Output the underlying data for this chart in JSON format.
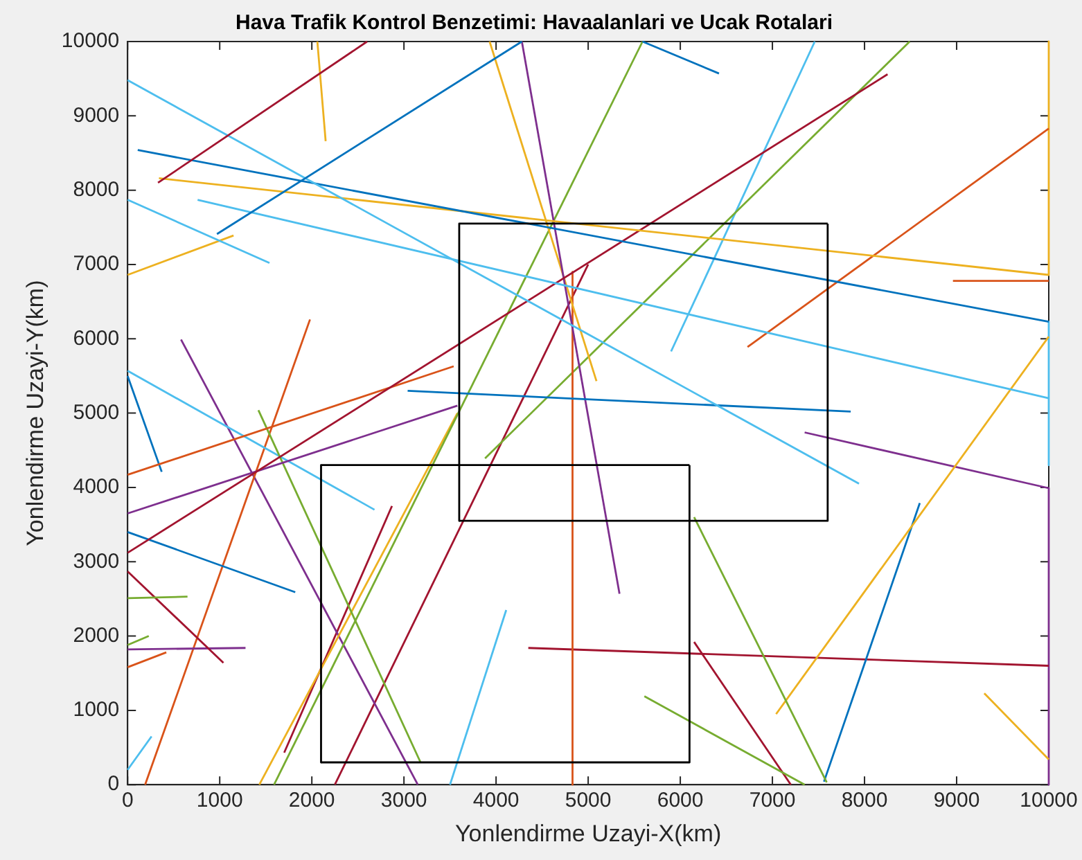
{
  "chart_data": {
    "type": "line",
    "title": "Hava Trafik Kontrol Benzetimi: Havaalanlari ve Ucak Rotalari",
    "xlabel": "Yonlendirme Uzayi-X(km)",
    "ylabel": "Yonlendirme Uzayi-Y(km)",
    "xlim": [
      0,
      10000
    ],
    "ylim": [
      0,
      10000
    ],
    "xticks": [
      0,
      1000,
      2000,
      3000,
      4000,
      5000,
      6000,
      7000,
      8000,
      9000,
      10000
    ],
    "yticks": [
      0,
      1000,
      2000,
      3000,
      4000,
      5000,
      6000,
      7000,
      8000,
      9000,
      10000
    ],
    "grid": false,
    "legend": false,
    "marker": "none",
    "line_style": "solid",
    "series": [
      {
        "color": "#000000",
        "x": [
          3600,
          7600,
          7600
        ],
        "values": [
          3550,
          3550,
          7550
        ]
      },
      {
        "color": "#000000",
        "x": [
          7600,
          3600,
          3600
        ],
        "values": [
          7550,
          7550,
          3550
        ]
      },
      {
        "color": "#000000",
        "x": [
          2100,
          6100,
          6100
        ],
        "values": [
          300,
          300,
          4300
        ]
      },
      {
        "color": "#000000",
        "x": [
          6100,
          2100,
          2100
        ],
        "values": [
          4300,
          4300,
          300
        ]
      },
      {
        "color": "#0072bd",
        "x": [
          970,
          4280
        ],
        "values": [
          7410,
          10000
        ]
      },
      {
        "color": "#a2142f",
        "x": [
          330,
          2600
        ],
        "values": [
          8100,
          10000
        ]
      },
      {
        "color": "#edb120",
        "x": [
          2060,
          2150
        ],
        "values": [
          10000,
          8660
        ]
      },
      {
        "color": "#4dbeee",
        "x": [
          0,
          7940
        ],
        "values": [
          9480,
          4050
        ]
      },
      {
        "color": "#0072bd",
        "x": [
          110,
          10000
        ],
        "values": [
          8540,
          6230
        ]
      },
      {
        "color": "#edb120",
        "x": [
          340,
          10000
        ],
        "values": [
          8160,
          6860
        ]
      },
      {
        "color": "#4dbeee",
        "x": [
          760,
          10000
        ],
        "values": [
          7870,
          5200
        ]
      },
      {
        "color": "#4dbeee",
        "x": [
          0,
          1540
        ],
        "values": [
          7870,
          7020
        ]
      },
      {
        "color": "#edb120",
        "x": [
          0,
          1150
        ],
        "values": [
          6860,
          7390
        ]
      },
      {
        "color": "#0072bd",
        "x": [
          5590,
          6420
        ],
        "values": [
          10000,
          9570
        ]
      },
      {
        "color": "#a2142f",
        "x": [
          0,
          8250
        ],
        "values": [
          3120,
          9560
        ]
      },
      {
        "color": "#7e2f8e",
        "x": [
          0,
          3580
        ],
        "values": [
          3650,
          5100
        ]
      },
      {
        "color": "#d95319",
        "x": [
          0,
          3540
        ],
        "values": [
          4170,
          5630
        ]
      },
      {
        "color": "#0072bd",
        "x": [
          3040,
          7850
        ],
        "values": [
          5300,
          5020
        ]
      },
      {
        "color": "#7e2f8e",
        "x": [
          4280,
          5340
        ],
        "values": [
          10000,
          2570
        ]
      },
      {
        "color": "#edb120",
        "x": [
          3930,
          5090
        ],
        "values": [
          10000,
          5430
        ]
      },
      {
        "color": "#d95319",
        "x": [
          4830,
          4830
        ],
        "values": [
          6900,
          0
        ]
      },
      {
        "color": "#77ac30",
        "x": [
          1420,
          3180
        ],
        "values": [
          5040,
          300
        ]
      },
      {
        "color": "#77ac30",
        "x": [
          3880,
          8490
        ],
        "values": [
          4390,
          10000
        ]
      },
      {
        "color": "#77ac30",
        "x": [
          1590,
          5590
        ],
        "values": [
          0,
          10000
        ]
      },
      {
        "color": "#edb120",
        "x": [
          1430,
          3580
        ],
        "values": [
          0,
          5000
        ]
      },
      {
        "color": "#77ac30",
        "x": [
          6150,
          7590
        ],
        "values": [
          3600,
          30
        ]
      },
      {
        "color": "#77ac30",
        "x": [
          5610,
          7350
        ],
        "values": [
          1190,
          0
        ]
      },
      {
        "color": "#77ac30",
        "x": [
          0,
          650
        ],
        "values": [
          2510,
          2530
        ]
      },
      {
        "color": "#77ac30",
        "x": [
          0,
          230
        ],
        "values": [
          1880,
          2000
        ]
      },
      {
        "color": "#edb120",
        "x": [
          7040,
          10000
        ],
        "values": [
          950,
          6030
        ]
      },
      {
        "color": "#edb120",
        "x": [
          9300,
          10000
        ],
        "values": [
          1230,
          340
        ]
      },
      {
        "color": "#0072bd",
        "x": [
          7560,
          8600
        ],
        "values": [
          40,
          3790
        ]
      },
      {
        "color": "#a2142f",
        "x": [
          6150,
          7200
        ],
        "values": [
          1920,
          0
        ]
      },
      {
        "color": "#a2142f",
        "x": [
          4350,
          10000
        ],
        "values": [
          1840,
          1600
        ]
      },
      {
        "color": "#7e2f8e",
        "x": [
          7350,
          10000,
          10000
        ],
        "values": [
          4740,
          3990,
          0
        ]
      },
      {
        "color": "#d95319",
        "x": [
          6730,
          10000
        ],
        "values": [
          5890,
          8830
        ]
      },
      {
        "color": "#d95319",
        "x": [
          8960,
          10000
        ],
        "values": [
          6780,
          6780
        ]
      },
      {
        "color": "#4dbeee",
        "x": [
          5900,
          7460
        ],
        "values": [
          5830,
          10000
        ]
      },
      {
        "color": "#4dbeee",
        "x": [
          10000,
          10000
        ],
        "values": [
          6230,
          4300
        ]
      },
      {
        "color": "#edb120",
        "x": [
          10000,
          10000
        ],
        "values": [
          10000,
          6860
        ]
      },
      {
        "color": "#4dbeee",
        "x": [
          0,
          2680
        ],
        "values": [
          5570,
          3700
        ]
      },
      {
        "color": "#0072bd",
        "x": [
          0,
          1820
        ],
        "values": [
          3400,
          2590
        ]
      },
      {
        "color": "#0072bd",
        "x": [
          0,
          370
        ],
        "values": [
          5500,
          4210
        ]
      },
      {
        "color": "#a2142f",
        "x": [
          0,
          1040
        ],
        "values": [
          2870,
          1640
        ]
      },
      {
        "color": "#7e2f8e",
        "x": [
          0,
          1280
        ],
        "values": [
          1820,
          1840
        ]
      },
      {
        "color": "#d95319",
        "x": [
          0,
          420
        ],
        "values": [
          1580,
          1780
        ]
      },
      {
        "color": "#d95319",
        "x": [
          190,
          1980
        ],
        "values": [
          0,
          6260
        ]
      },
      {
        "color": "#7e2f8e",
        "x": [
          580,
          3150
        ],
        "values": [
          5990,
          0
        ]
      },
      {
        "color": "#a2142f",
        "x": [
          1700,
          2870
        ],
        "values": [
          430,
          3750
        ]
      },
      {
        "color": "#a2142f",
        "x": [
          2250,
          5000
        ],
        "values": [
          0,
          7000
        ]
      },
      {
        "color": "#4dbeee",
        "x": [
          3500,
          4110
        ],
        "values": [
          0,
          2350
        ]
      },
      {
        "color": "#4dbeee",
        "x": [
          0,
          260
        ],
        "values": [
          200,
          650
        ]
      }
    ]
  }
}
